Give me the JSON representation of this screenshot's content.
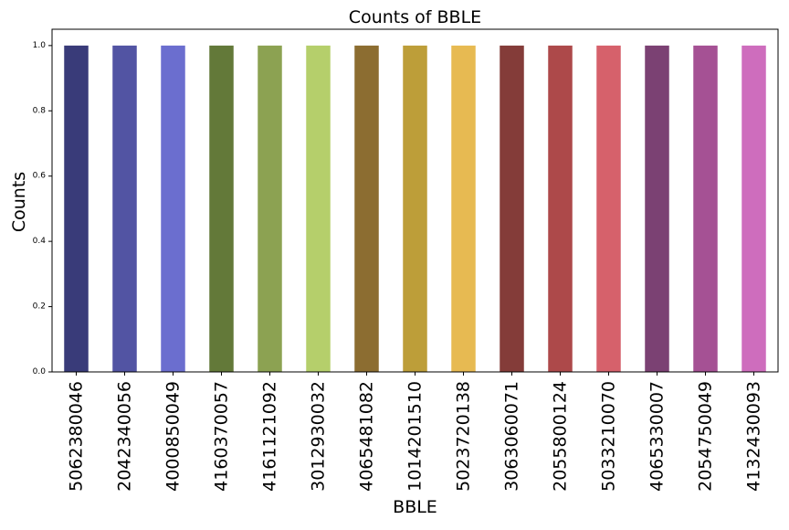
{
  "chart_data": {
    "type": "bar",
    "title": "Counts of BBLE",
    "xlabel": "BBLE",
    "ylabel": "Counts",
    "categories": [
      "5062380046",
      "2042340056",
      "4000850049",
      "4160370057",
      "4161121092",
      "3012930032",
      "4065481082",
      "1014201510",
      "5023720138",
      "3063060071",
      "2055800124",
      "5033210070",
      "4065330007",
      "2054750049",
      "4132430093"
    ],
    "values": [
      1,
      1,
      1,
      1,
      1,
      1,
      1,
      1,
      1,
      1,
      1,
      1,
      1,
      1,
      1
    ],
    "colors": [
      "#393b79",
      "#5254a3",
      "#6b6ecf",
      "#637939",
      "#8ca252",
      "#b5cf6b",
      "#8c6d31",
      "#bd9e39",
      "#e7ba52",
      "#843c39",
      "#ad494a",
      "#d6616b",
      "#7b4173",
      "#a55194",
      "#ce6dbd"
    ],
    "ylim": [
      0,
      1.05
    ],
    "yticks": [
      0.0,
      0.2,
      0.4,
      0.6,
      0.8,
      1.0
    ],
    "ytick_labels": [
      "0.0",
      "0.2",
      "0.4",
      "0.6",
      "0.8",
      "1.0"
    ],
    "grid": false,
    "legend": "none"
  }
}
